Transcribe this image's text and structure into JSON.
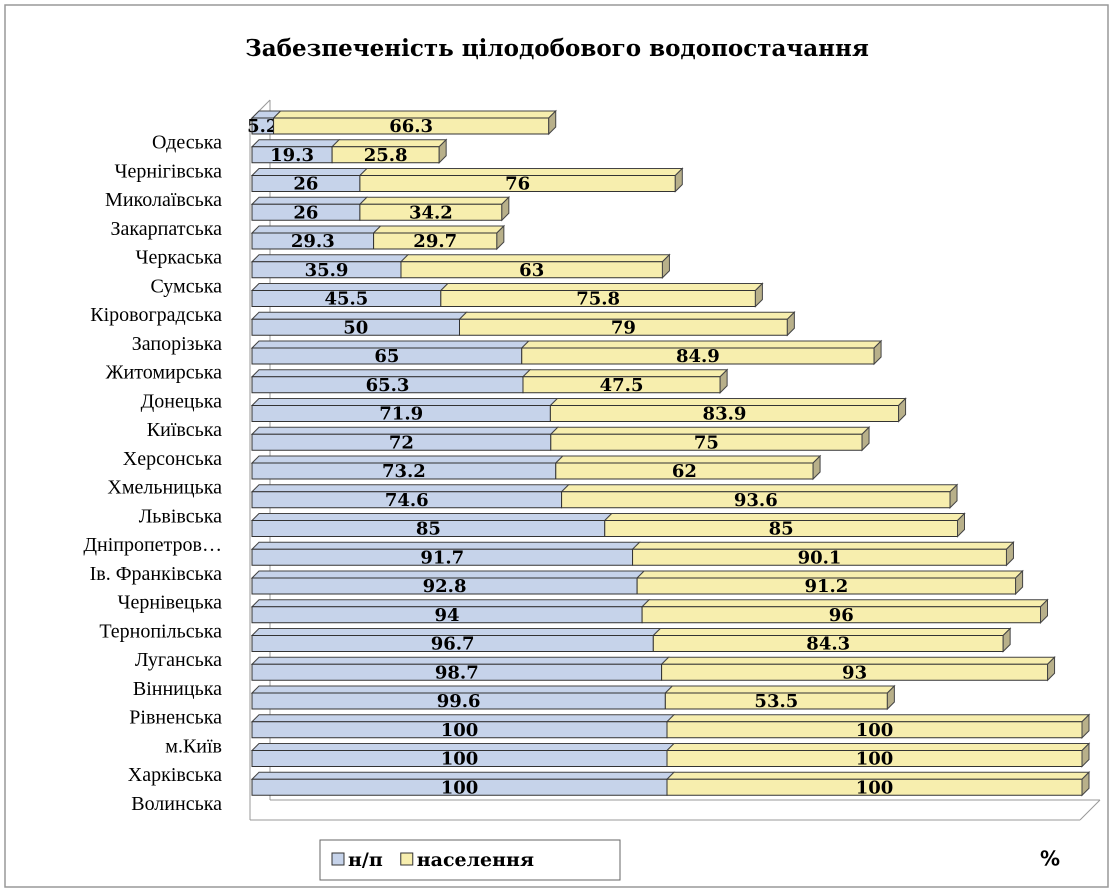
{
  "chart_data": {
    "type": "bar",
    "orientation": "horizontal",
    "stacked": true,
    "three_d": true,
    "title": "Забезпеченість цілодобового водопостачання",
    "unit_label": "%",
    "categories": [
      "Одеська",
      "Чернігівська",
      "Миколаївська",
      "Закарпатська",
      "Черкаська",
      "Сумська",
      "Кіровоградська",
      "Запорізька",
      "Житомирська",
      "Донецька",
      "Київська",
      "Херсонська",
      "Хмельницька",
      "Львівська",
      "Дніпропетров…",
      "Ів. Франківська",
      "Чернівецька",
      "Тернопільська",
      "Луганська",
      "Вінницька",
      "Рівненська",
      "м.Київ",
      "Харківська",
      "Волинська"
    ],
    "series": [
      {
        "name": "н/п",
        "color": "#c6d3ea",
        "values": [
          5.2,
          19.3,
          26,
          26,
          29.3,
          35.9,
          45.5,
          50,
          65,
          65.3,
          71.9,
          72,
          73.2,
          74.6,
          85,
          91.7,
          92.8,
          94,
          96.7,
          98.7,
          99.6,
          100,
          100,
          100
        ]
      },
      {
        "name": "населення",
        "color": "#f7eeae",
        "values": [
          66.3,
          25.8,
          76,
          34.2,
          29.7,
          63,
          75.8,
          79,
          84.9,
          47.5,
          83.9,
          75,
          62,
          93.6,
          85,
          90.1,
          91.2,
          96,
          84.3,
          93,
          53.5,
          100,
          100,
          100
        ]
      }
    ],
    "xlim": [
      0,
      200
    ],
    "legend": "bottom"
  }
}
